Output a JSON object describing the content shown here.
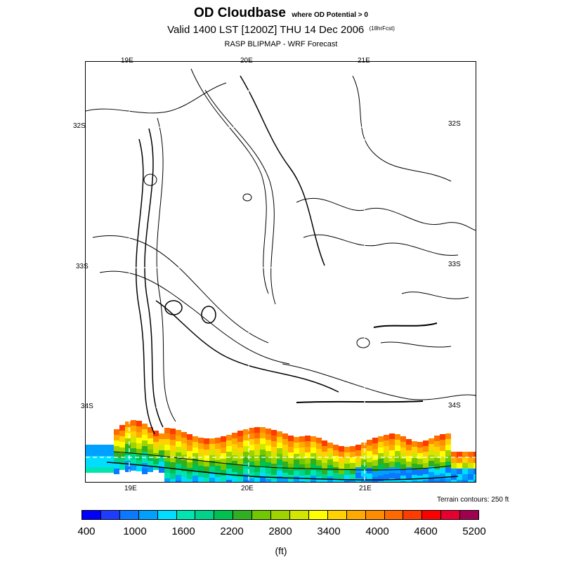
{
  "header": {
    "title": "OD Cloudbase",
    "title_suffix": "where OD Potential > 0",
    "valid_line": "Valid 1400 LST [1200Z] THU 14 Dec 2006",
    "forecast_tag": "(18hrFcst)",
    "source_line": "RASP BLIPMAP - WRF Forecast"
  },
  "map": {
    "lon_labels": [
      "19E",
      "20E",
      "21E"
    ],
    "lat_labels": [
      "32S",
      "33S",
      "34S"
    ],
    "terrain_note": "Terrain contours: 250 ft"
  },
  "colorbar": {
    "colors": [
      "#0000ff",
      "#1e3cff",
      "#0a78ff",
      "#00a0ff",
      "#00ddff",
      "#00e5b0",
      "#00d28c",
      "#00c050",
      "#30b020",
      "#70c800",
      "#a0d200",
      "#d2e600",
      "#ffff00",
      "#ffd200",
      "#ffaa00",
      "#ff8c00",
      "#ff6a00",
      "#ff3c00",
      "#ff0000",
      "#e60030",
      "#a00050"
    ],
    "tick_labels": [
      "400",
      "1000",
      "1600",
      "2200",
      "2800",
      "3400",
      "4000",
      "4600",
      "5200"
    ],
    "units": "(ft)"
  },
  "chart_data": {
    "type": "heatmap",
    "title": "OD Cloudbase",
    "subtitle": "Valid 1400 LST [1200Z] THU 14 Dec 2006",
    "xlabel": "",
    "ylabel": "",
    "x_ticks": [
      "19E",
      "20E",
      "21E"
    ],
    "y_ticks": [
      "32S",
      "33S",
      "34S"
    ],
    "color_scale": {
      "min": 400,
      "max": 5200,
      "step": 600,
      "units": "ft"
    },
    "terrain_contour_interval_ft": 250,
    "cloudbase_region": "coastal strip along southern edge of domain"
  }
}
